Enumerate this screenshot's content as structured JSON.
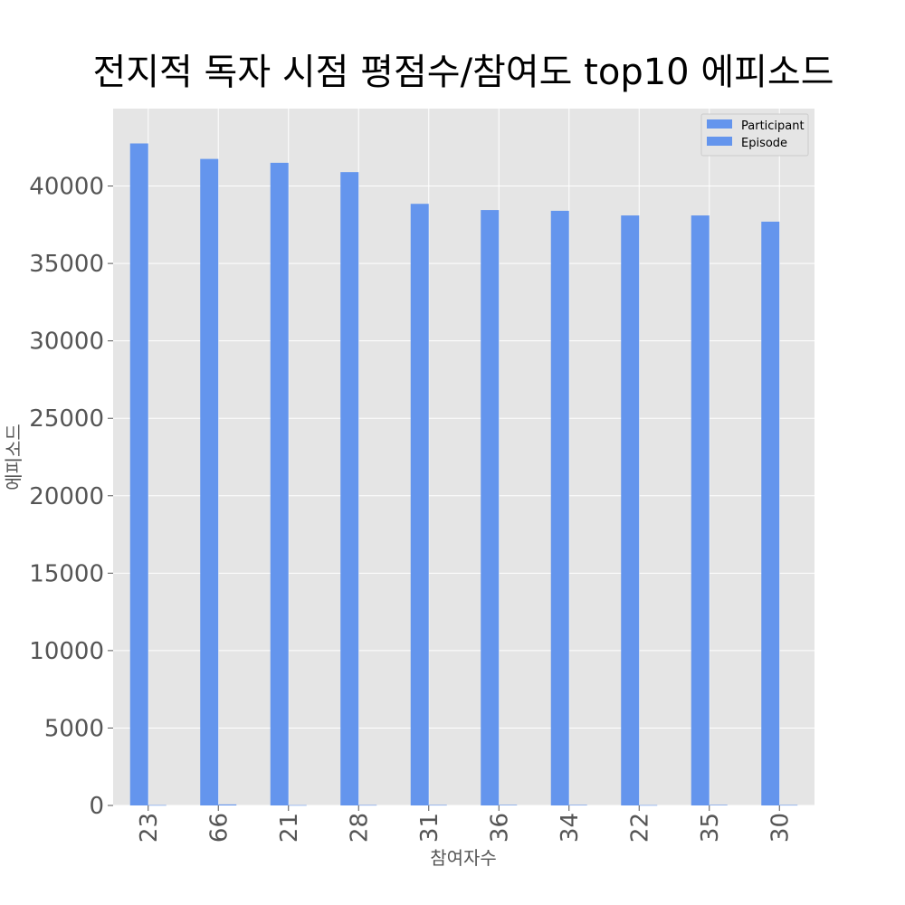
{
  "chart_data": {
    "type": "bar",
    "title": "전지적 독자 시점 평점수/참여도 top10 에피소드",
    "xlabel": "참여자수",
    "ylabel": "에피소드",
    "categories": [
      "23",
      "66",
      "21",
      "28",
      "31",
      "36",
      "34",
      "22",
      "35",
      "30"
    ],
    "series": [
      {
        "name": "Participant",
        "color": "#6495ed",
        "values": [
          42750,
          41750,
          41500,
          40900,
          38850,
          38450,
          38400,
          38100,
          38100,
          37700
        ]
      },
      {
        "name": "Episode",
        "color": "#6495ed",
        "values": [
          23,
          66,
          21,
          28,
          31,
          36,
          34,
          22,
          35,
          30
        ]
      }
    ],
    "ylim": [
      0,
      45000
    ],
    "yticks": [
      0,
      5000,
      10000,
      15000,
      20000,
      25000,
      30000,
      35000,
      40000
    ],
    "grid": true,
    "legend_position": "top-right",
    "plot_background": "#e5e5e5",
    "grid_color": "#ffffff"
  }
}
